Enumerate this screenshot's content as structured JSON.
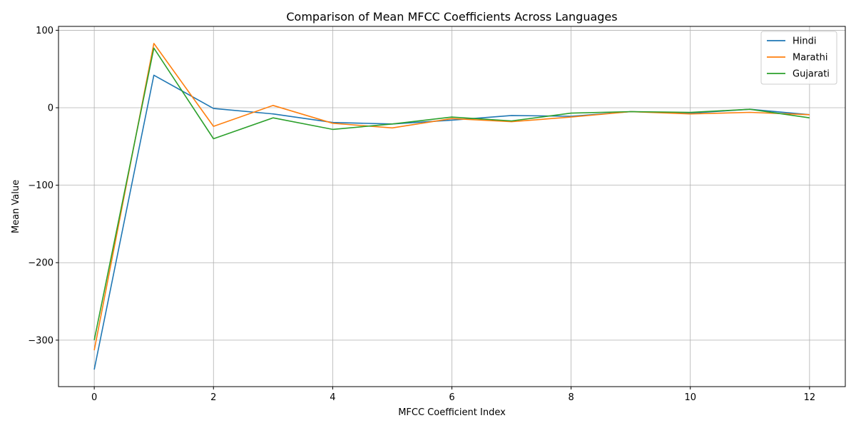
{
  "chart_data": {
    "type": "line",
    "title": "Comparison of Mean MFCC Coefficients Across Languages",
    "xlabel": "MFCC Coefficient Index",
    "ylabel": "Mean Value",
    "x": [
      0,
      1,
      2,
      3,
      4,
      5,
      6,
      7,
      8,
      9,
      10,
      11,
      12
    ],
    "xlim": [
      -0.6,
      12.6
    ],
    "ylim": [
      -360,
      105
    ],
    "xticks": [
      0,
      2,
      4,
      6,
      8,
      10,
      12
    ],
    "yticks": [
      100,
      0,
      -100,
      -200,
      -300
    ],
    "ytick_labels": [
      "100",
      "0",
      "−100",
      "−200",
      "−300"
    ],
    "grid": true,
    "legend_position": "top-right",
    "series": [
      {
        "name": "Hindi",
        "color": "#1f77b4",
        "values": [
          -338,
          42,
          -1,
          -8,
          -19,
          -21,
          -16,
          -10,
          -11,
          -5,
          -7,
          -2,
          -9
        ]
      },
      {
        "name": "Marathi",
        "color": "#ff7f0e",
        "values": [
          -313,
          83,
          -24,
          3,
          -20,
          -26,
          -14,
          -18,
          -12,
          -5,
          -8,
          -6,
          -9
        ]
      },
      {
        "name": "Gujarati",
        "color": "#2ca02c",
        "values": [
          -300,
          77,
          -40,
          -13,
          -28,
          -21,
          -12,
          -17,
          -7,
          -5,
          -6,
          -2,
          -13
        ]
      }
    ]
  }
}
